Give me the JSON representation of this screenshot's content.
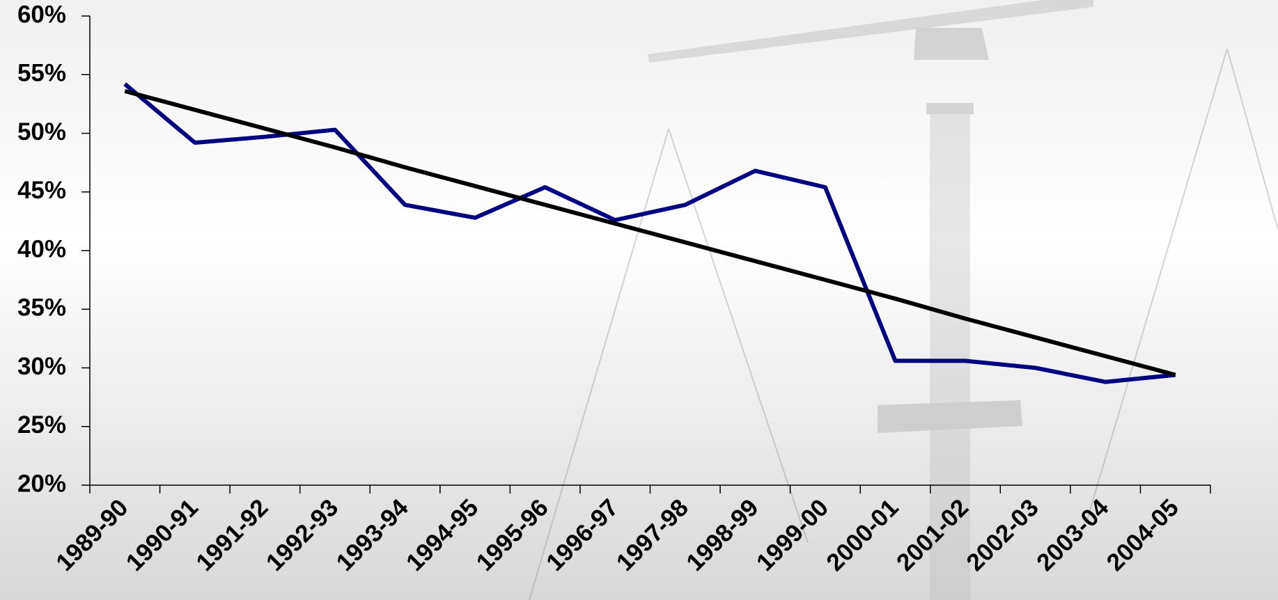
{
  "chart_data": {
    "type": "line",
    "categories": [
      "1989-90",
      "1990-91",
      "1991-92",
      "1992-93",
      "1993-94",
      "1994-95",
      "1995-96",
      "1996-97",
      "1997-98",
      "1998-99",
      "1999-00",
      "2000-01",
      "2001-02",
      "2002-03",
      "2003-04",
      "2004-05"
    ],
    "series": [
      {
        "color": "#000080",
        "values": [
          54.2,
          49.2,
          49.7,
          50.3,
          43.9,
          42.8,
          45.4,
          42.6,
          43.9,
          46.8,
          45.4,
          30.6,
          30.6,
          30.0,
          28.8,
          29.4
        ]
      },
      {
        "color": "#000000",
        "values": [
          53.6,
          52.0,
          50.4,
          48.8,
          47.1,
          45.5,
          43.9,
          42.3,
          40.7,
          39.1,
          37.5,
          35.9,
          34.2,
          32.6,
          31.0,
          29.4
        ]
      }
    ],
    "ylim": [
      20,
      60
    ],
    "yticks": [
      {
        "value": 20,
        "label": "20%"
      },
      {
        "value": 25,
        "label": "25%"
      },
      {
        "value": 30,
        "label": "30%"
      },
      {
        "value": 35,
        "label": "35%"
      },
      {
        "value": 40,
        "label": "40%"
      },
      {
        "value": 45,
        "label": "45%"
      },
      {
        "value": 50,
        "label": "50%"
      },
      {
        "value": 55,
        "label": "55%"
      },
      {
        "value": 60,
        "label": "60%"
      }
    ],
    "grid": false
  }
}
